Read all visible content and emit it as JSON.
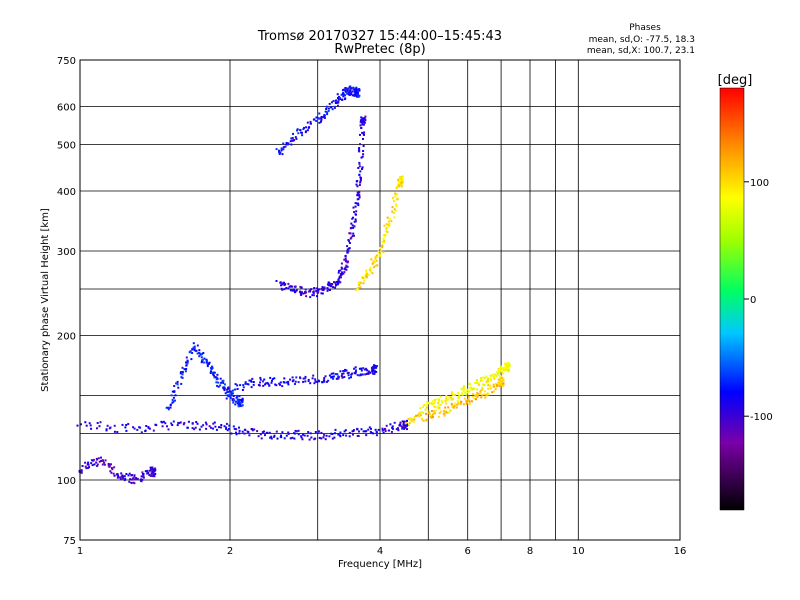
{
  "chart_data": {
    "type": "scatter",
    "title": "Tromsø 20170327 15:44:00–15:45:43",
    "subtitle": "RwPretec (8p)",
    "xlabel": "Frequency [MHz]",
    "ylabel": "Stationary phase Virtual Height [km]",
    "x_scale": "log",
    "y_scale": "log",
    "xlim": [
      1,
      16
    ],
    "ylim": [
      75,
      750
    ],
    "x_ticks": [
      1,
      2,
      4,
      6,
      8,
      10,
      16
    ],
    "x_grid": [
      1,
      2,
      3,
      4,
      5,
      6,
      7,
      8,
      9,
      10,
      16
    ],
    "y_ticks": [
      75,
      100,
      200,
      300,
      400,
      500,
      600,
      750
    ],
    "y_grid": [
      75,
      100,
      125,
      150,
      200,
      250,
      300,
      400,
      500,
      600,
      750
    ],
    "grid": true,
    "stats": {
      "heading": "Phases",
      "line_o": "mean, sd,O: -77.5, 18.3",
      "line_x": "mean, sd,X: 100.7, 23.1"
    },
    "colorbar": {
      "label": "[deg]",
      "range": [
        -180,
        180
      ],
      "ticks": [
        100,
        0,
        -100
      ]
    },
    "traces": [
      {
        "name": "low-trace-1",
        "x": [
          1.0,
          1.3,
          1.6,
          1.9,
          2.2,
          2.6,
          3.0,
          3.5,
          4.0,
          4.5
        ],
        "y": [
          130,
          128,
          131,
          129,
          125,
          124,
          124,
          125,
          127,
          130
        ],
        "phase": -110
      },
      {
        "name": "low-trace-2",
        "x": [
          1.0,
          1.1,
          1.2,
          1.3,
          1.4
        ],
        "y": [
          105,
          110,
          102,
          100,
          104
        ],
        "phase": -120
      },
      {
        "name": "rise-trace",
        "x": [
          1.5,
          1.6,
          1.7,
          1.8,
          1.9,
          2.0,
          2.1
        ],
        "y": [
          140,
          165,
          190,
          175,
          160,
          150,
          145
        ],
        "phase": -95
      },
      {
        "name": "mid-trace",
        "x": [
          2.0,
          2.3,
          2.6,
          3.0,
          3.3,
          3.6,
          3.9
        ],
        "y": [
          155,
          160,
          160,
          162,
          165,
          168,
          170
        ],
        "phase": -105
      },
      {
        "name": "f-cusp",
        "x": [
          2.5,
          2.7,
          2.9,
          3.1,
          3.3,
          3.4,
          3.5,
          3.6,
          3.65,
          3.7
        ],
        "y": [
          255,
          250,
          245,
          250,
          260,
          280,
          320,
          380,
          450,
          560
        ],
        "phase": -115
      },
      {
        "name": "f-top",
        "x": [
          2.5,
          2.7,
          3.0,
          3.2,
          3.4,
          3.5,
          3.6
        ],
        "y": [
          480,
          520,
          560,
          600,
          640,
          650,
          640
        ],
        "phase": -100
      },
      {
        "name": "x-trace",
        "x": [
          3.6,
          3.8,
          4.0,
          4.2,
          4.4
        ],
        "y": [
          250,
          270,
          300,
          350,
          420
        ],
        "phase": 110
      },
      {
        "name": "x-lower-1",
        "x": [
          4.5,
          5.0,
          5.5,
          6.0,
          6.5,
          7.0
        ],
        "y": [
          132,
          136,
          140,
          146,
          152,
          160
        ],
        "phase": 120
      },
      {
        "name": "x-lower-2",
        "x": [
          4.8,
          5.3,
          5.8,
          6.3,
          6.8,
          7.2
        ],
        "y": [
          140,
          146,
          152,
          158,
          165,
          172
        ],
        "phase": 95
      }
    ]
  }
}
